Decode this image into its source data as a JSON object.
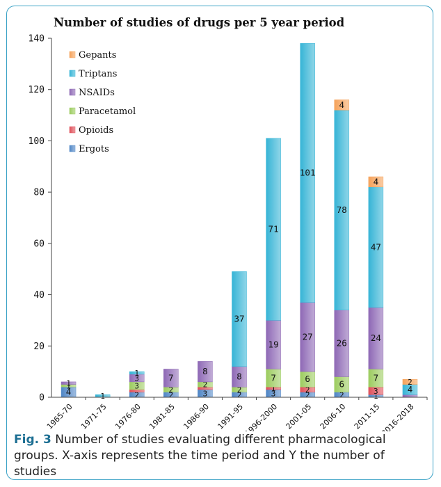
{
  "chart_data": {
    "type": "bar",
    "stacked": true,
    "title": "Number of studies of drugs per 5 year period",
    "xlabel": "",
    "ylabel": "",
    "ylim": [
      0,
      140
    ],
    "yticks": [
      0,
      20,
      40,
      60,
      80,
      100,
      120,
      140
    ],
    "grid": false,
    "legend_position": "top-left",
    "categories": [
      "1965-70",
      "1971-75",
      "1976-80",
      "1981-85",
      "1986-90",
      "1991-95",
      "1996-2000",
      "2001-05",
      "2006-10",
      "2011-15",
      "2016-2018"
    ],
    "series": [
      {
        "name": "Ergots",
        "color": "#4f86c6",
        "values": [
          4,
          0,
          2,
          2,
          3,
          2,
          3,
          2,
          2,
          1,
          0
        ],
        "labels": [
          "4",
          "",
          "2",
          "2",
          "3",
          "2",
          "3",
          "2",
          "2",
          "1",
          ""
        ]
      },
      {
        "name": "Opioids",
        "color": "#e0505a",
        "values": [
          0,
          0,
          1,
          0,
          1,
          0,
          1,
          2,
          0,
          3,
          0
        ],
        "labels": [
          "",
          "",
          "",
          "",
          "",
          "",
          "1",
          "2",
          "",
          "3",
          ""
        ]
      },
      {
        "name": "Paracetamol",
        "color": "#9ccc5f",
        "values": [
          1,
          0,
          3,
          2,
          2,
          2,
          7,
          6,
          6,
          7,
          0
        ],
        "labels": [
          "1",
          "",
          "3",
          "2",
          "2",
          "2",
          "7",
          "6",
          "6",
          "7",
          ""
        ]
      },
      {
        "name": "NSAIDs",
        "color": "#8e68b5",
        "values": [
          1,
          0,
          3,
          7,
          8,
          8,
          19,
          27,
          26,
          24,
          1
        ],
        "labels": [
          "1",
          "",
          "3",
          "7",
          "8",
          "8",
          "19",
          "27",
          "26",
          "24",
          ""
        ]
      },
      {
        "name": "Triptans",
        "color": "#36b4d6",
        "values": [
          0,
          1,
          1,
          0,
          0,
          37,
          71,
          101,
          78,
          47,
          4
        ],
        "labels": [
          "",
          "1",
          "1",
          "",
          "",
          "37",
          "71",
          "101",
          "78",
          "47",
          "4"
        ]
      },
      {
        "name": "Gepants",
        "color": "#f5a25a",
        "values": [
          0,
          0,
          0,
          0,
          0,
          0,
          0,
          0,
          4,
          4,
          2
        ],
        "labels": [
          "",
          "",
          "",
          "",
          "",
          "",
          "",
          "",
          "4",
          "4",
          "2"
        ]
      }
    ]
  },
  "caption": {
    "label": "Fig. 3",
    "text": " Number of studies evaluating different pharmacological groups. X-axis represents the time period and Y the number of studies"
  }
}
